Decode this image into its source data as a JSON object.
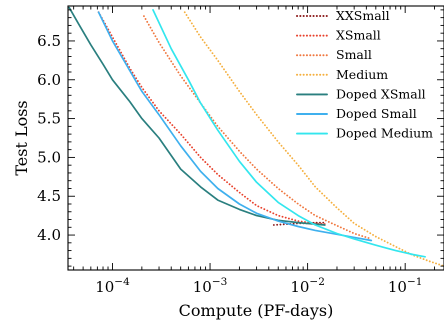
{
  "chart_data": {
    "type": "line",
    "title": "",
    "xlabel": "Compute (PF-days)",
    "ylabel": "Test Loss",
    "xscale": "log",
    "xlim": [
      3.5e-05,
      0.25
    ],
    "ylim": [
      3.55,
      6.95
    ],
    "xticks": [
      {
        "value": 0.0001,
        "base": "10",
        "exp": "−4"
      },
      {
        "value": 0.001,
        "base": "10",
        "exp": "−3"
      },
      {
        "value": 0.01,
        "base": "10",
        "exp": "−2"
      },
      {
        "value": 0.1,
        "base": "10",
        "exp": "−1"
      }
    ],
    "yticks": [
      "4.0",
      "4.5",
      "5.0",
      "5.5",
      "6.0",
      "6.5"
    ],
    "legend_position": "top-right",
    "grid": false,
    "series": [
      {
        "name": "XXSmall",
        "color": "#8b1a1a",
        "style": "dotted",
        "x": [
          0.0045,
          0.006,
          0.008,
          0.01,
          0.012,
          0.015
        ],
        "y": [
          4.13,
          4.14,
          4.15,
          4.15,
          4.16,
          4.16
        ]
      },
      {
        "name": "XSmall",
        "color": "#e8412c",
        "style": "dotted",
        "x": [
          7.2e-05,
          0.0001,
          0.00015,
          0.0002,
          0.0003,
          0.0005,
          0.0008,
          0.0012,
          0.002,
          0.003,
          0.005,
          0.008,
          0.012,
          0.016
        ],
        "y": [
          6.87,
          6.55,
          6.15,
          5.9,
          5.6,
          5.3,
          5.0,
          4.78,
          4.55,
          4.38,
          4.25,
          4.18,
          4.15,
          4.14
        ]
      },
      {
        "name": "Small",
        "color": "#f07840",
        "style": "dotted",
        "x": [
          0.00021,
          0.0003,
          0.0005,
          0.0008,
          0.0012,
          0.002,
          0.003,
          0.005,
          0.008,
          0.012,
          0.02,
          0.03,
          0.045
        ],
        "y": [
          6.82,
          6.48,
          6.05,
          5.7,
          5.4,
          5.08,
          4.85,
          4.6,
          4.4,
          4.25,
          4.12,
          4.02,
          3.95
        ]
      },
      {
        "name": "Medium",
        "color": "#f5b040",
        "style": "dotted",
        "x": [
          0.00055,
          0.0008,
          0.0012,
          0.002,
          0.003,
          0.005,
          0.008,
          0.012,
          0.02,
          0.03,
          0.05,
          0.08,
          0.12,
          0.18,
          0.25
        ],
        "y": [
          6.87,
          6.55,
          6.25,
          5.85,
          5.55,
          5.2,
          4.9,
          4.62,
          4.35,
          4.15,
          3.98,
          3.85,
          3.74,
          3.66,
          3.6
        ]
      },
      {
        "name": "Doped XSmall",
        "color": "#2a7f7f",
        "style": "solid",
        "x": [
          3.6e-05,
          4.5e-05,
          6e-05,
          8e-05,
          0.0001,
          0.00015,
          0.0002,
          0.0003,
          0.0005,
          0.0008,
          0.0012,
          0.002,
          0.003,
          0.005,
          0.008,
          0.012,
          0.015
        ],
        "y": [
          6.93,
          6.72,
          6.45,
          6.2,
          6.0,
          5.72,
          5.5,
          5.25,
          4.85,
          4.62,
          4.45,
          4.33,
          4.25,
          4.19,
          4.16,
          4.14,
          4.13
        ]
      },
      {
        "name": "Doped Small",
        "color": "#3fb0ee",
        "style": "solid",
        "x": [
          7.2e-05,
          0.0001,
          0.00015,
          0.0002,
          0.0003,
          0.0005,
          0.0008,
          0.0012,
          0.002,
          0.003,
          0.005,
          0.008,
          0.012,
          0.02,
          0.03,
          0.045
        ],
        "y": [
          6.87,
          6.5,
          6.12,
          5.85,
          5.55,
          5.15,
          4.82,
          4.6,
          4.4,
          4.28,
          4.18,
          4.11,
          4.06,
          4.01,
          3.97,
          3.93
        ]
      },
      {
        "name": "Doped Medium",
        "color": "#33e6ee",
        "style": "solid",
        "x": [
          0.00026,
          0.0004,
          0.0006,
          0.0008,
          0.0012,
          0.002,
          0.003,
          0.005,
          0.008,
          0.012,
          0.02,
          0.03,
          0.05,
          0.08,
          0.12,
          0.16
        ],
        "y": [
          6.9,
          6.4,
          6.0,
          5.7,
          5.35,
          4.95,
          4.68,
          4.42,
          4.25,
          4.13,
          4.02,
          3.95,
          3.87,
          3.8,
          3.75,
          3.72
        ]
      }
    ]
  }
}
